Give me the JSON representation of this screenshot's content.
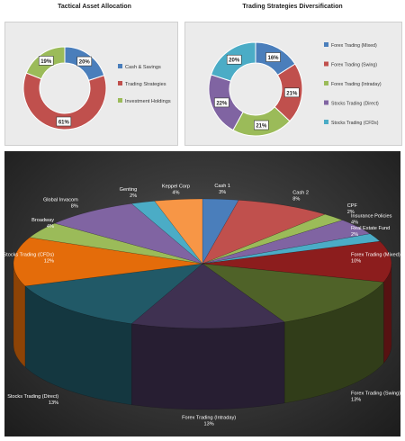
{
  "titles": {
    "left": "Tactical Asset Allocation",
    "right": "Trading Strategies Diversification"
  },
  "chart_data": [
    {
      "id": "tactical",
      "type": "pie",
      "variant": "donut",
      "title": "Tactical Asset Allocation",
      "legend_position": "right",
      "slices": [
        {
          "label": "Cash & Savings",
          "value": 20,
          "display": "20%",
          "color": "#4a7ebb"
        },
        {
          "label": "Trading Strategies",
          "value": 61,
          "display": "61%",
          "color": "#c0504d"
        },
        {
          "label": "Investment Holdings",
          "value": 19,
          "display": "19%",
          "color": "#9bbb59"
        }
      ]
    },
    {
      "id": "strategies",
      "type": "pie",
      "variant": "donut",
      "title": "Trading Strategies Diversification",
      "legend_position": "right",
      "slices": [
        {
          "label": "Forex Trading (Mixed)",
          "value": 16,
          "display": "16%",
          "color": "#4a7ebb"
        },
        {
          "label": "Forex Trading (Swing)",
          "value": 21,
          "display": "21%",
          "color": "#c0504d"
        },
        {
          "label": "Forex Trading (Intraday)",
          "value": 21,
          "display": "21%",
          "color": "#9bbb59"
        },
        {
          "label": "Stocks Trading (Direct)",
          "value": 22,
          "display": "22%",
          "color": "#8064a2"
        },
        {
          "label": "Stocks Trading (CFDs)",
          "value": 20,
          "display": "20%",
          "color": "#4bacc6"
        }
      ]
    },
    {
      "id": "portfolio3d",
      "type": "pie",
      "variant": "3d",
      "slices": [
        {
          "label": "Cash 1",
          "value": 3,
          "display": "3%",
          "color": "#4a7ebb"
        },
        {
          "label": "Cash 2",
          "value": 8,
          "display": "8%",
          "color": "#c0504d"
        },
        {
          "label": "CPF",
          "value": 2,
          "display": "2%",
          "color": "#9bbb59"
        },
        {
          "label": "Insurance Policies",
          "value": 4,
          "display": "4%",
          "color": "#8064a2"
        },
        {
          "label": "Real Estate Fund",
          "value": 2,
          "display": "2%",
          "color": "#4bacc6"
        },
        {
          "label": "Forex Trading (Mixed)",
          "value": 10,
          "display": "10%",
          "color": "#8c1d1d"
        },
        {
          "label": "Forex Trading (Swing)",
          "value": 13,
          "display": "13%",
          "color": "#4f6228"
        },
        {
          "label": "Forex Trading (Intraday)",
          "value": 13,
          "display": "13%",
          "color": "#3f3151"
        },
        {
          "label": "Stocks Trading (Direct)",
          "value": 13,
          "display": "13%",
          "color": "#215967"
        },
        {
          "label": "Stocks Trading (CFDs)",
          "value": 12,
          "display": "12%",
          "color": "#e46c0a"
        },
        {
          "label": "Broadway",
          "value": 4,
          "display": "4%",
          "color": "#9bbb59"
        },
        {
          "label": "Global Invacom",
          "value": 8,
          "display": "8%",
          "color": "#8064a2"
        },
        {
          "label": "Genting",
          "value": 2,
          "display": "2%",
          "color": "#4bacc6"
        },
        {
          "label": "Keppel Corp",
          "value": 4,
          "display": "4%",
          "color": "#f79646"
        }
      ]
    }
  ]
}
